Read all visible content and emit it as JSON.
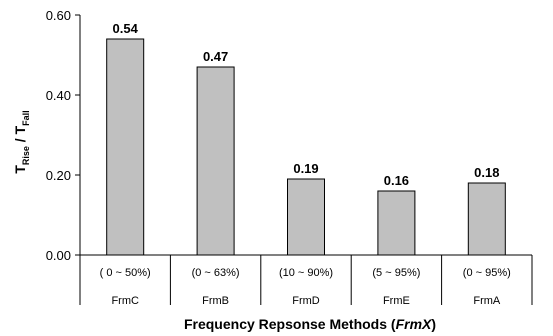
{
  "chart_data": {
    "type": "bar",
    "categories": [
      "FrmC",
      "FrmB",
      "FrmD",
      "FrmE",
      "FrmA"
    ],
    "ranges": [
      "( 0 ~ 50%)",
      "(0 ~ 63%)",
      "(10 ~ 90%)",
      "(5 ~ 95%)",
      "(0 ~ 95%)"
    ],
    "values": [
      0.54,
      0.47,
      0.19,
      0.16,
      0.18
    ],
    "value_labels": [
      "0.54",
      "0.47",
      "0.19",
      "0.16",
      "0.18"
    ],
    "ylim": [
      0,
      0.6
    ],
    "yticks": [
      "0.00",
      "0.20",
      "0.40",
      "0.60"
    ],
    "ylabel": {
      "main": "T",
      "sub1": "Rise",
      "sep": " / T",
      "sub2": "Fall"
    },
    "xlabel": {
      "main": "Frequency Repsonse Methods (",
      "italic": "FrmX",
      "end": ")"
    },
    "grid": false,
    "bar_color": "#c0c0c0"
  }
}
